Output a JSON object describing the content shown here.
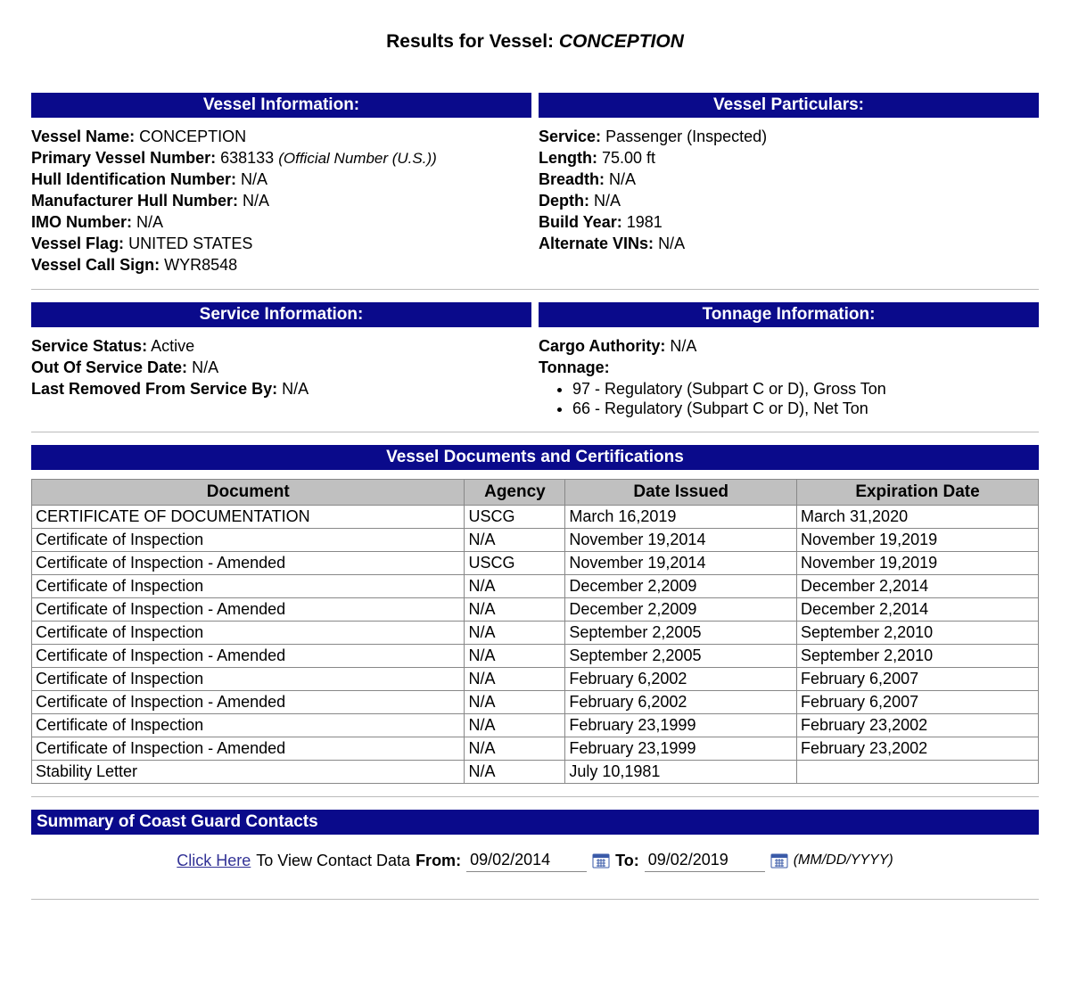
{
  "title_prefix": "Results for Vessel: ",
  "vessel_name": "CONCEPTION",
  "colors": {
    "header_bg": "#0a0a8b",
    "header_fg": "#ffffff",
    "table_header_bg": "#c0c0c0",
    "border": "#888888",
    "link": "#323296"
  },
  "vessel_info": {
    "header": "Vessel Information:",
    "fields": {
      "name": {
        "label": "Vessel Name:",
        "value": "CONCEPTION"
      },
      "primary_number": {
        "label": "Primary Vessel Number:",
        "value": "638133",
        "note": "(Official Number (U.S.))"
      },
      "hull_id": {
        "label": "Hull Identification Number:",
        "value": "N/A"
      },
      "mfr_hull": {
        "label": "Manufacturer Hull Number:",
        "value": "N/A"
      },
      "imo": {
        "label": "IMO Number:",
        "value": "N/A"
      },
      "flag": {
        "label": "Vessel Flag:",
        "value": "UNITED STATES"
      },
      "call_sign": {
        "label": "Vessel Call Sign:",
        "value": "WYR8548"
      }
    }
  },
  "particulars": {
    "header": "Vessel Particulars:",
    "fields": {
      "service": {
        "label": "Service:",
        "value": "Passenger (Inspected)"
      },
      "length": {
        "label": "Length:",
        "value": "75.00 ft"
      },
      "breadth": {
        "label": "Breadth:",
        "value": "N/A"
      },
      "depth": {
        "label": "Depth:",
        "value": "N/A"
      },
      "build_year": {
        "label": "Build Year:",
        "value": "1981"
      },
      "alt_vins": {
        "label": "Alternate VINs:",
        "value": "N/A"
      }
    }
  },
  "service_info": {
    "header": "Service Information:",
    "fields": {
      "status": {
        "label": "Service Status:",
        "value": "Active"
      },
      "out_date": {
        "label": "Out Of Service Date:",
        "value": "N/A"
      },
      "removed_by": {
        "label": "Last Removed From Service By:",
        "value": "N/A"
      }
    }
  },
  "tonnage_info": {
    "header": "Tonnage Information:",
    "cargo_authority": {
      "label": "Cargo Authority:",
      "value": "N/A"
    },
    "tonnage_label": "Tonnage:",
    "tonnage_items": [
      "97 - Regulatory (Subpart C or D), Gross Ton",
      "66 - Regulatory (Subpart C or D), Net Ton"
    ]
  },
  "docs": {
    "header": "Vessel Documents and Certifications",
    "columns": [
      "Document",
      "Agency",
      "Date Issued",
      "Expiration Date"
    ],
    "rows": [
      [
        "CERTIFICATE OF DOCUMENTATION",
        "USCG",
        "March 16,2019",
        "March 31,2020"
      ],
      [
        "Certificate of Inspection",
        "N/A",
        "November 19,2014",
        "November 19,2019"
      ],
      [
        "Certificate of Inspection - Amended",
        "USCG",
        "November 19,2014",
        "November 19,2019"
      ],
      [
        "Certificate of Inspection",
        "N/A",
        "December 2,2009",
        "December 2,2014"
      ],
      [
        "Certificate of Inspection - Amended",
        "N/A",
        "December 2,2009",
        "December 2,2014"
      ],
      [
        "Certificate of Inspection",
        "N/A",
        "September 2,2005",
        "September 2,2010"
      ],
      [
        "Certificate of Inspection - Amended",
        "N/A",
        "September 2,2005",
        "September 2,2010"
      ],
      [
        "Certificate of Inspection",
        "N/A",
        "February 6,2002",
        "February 6,2007"
      ],
      [
        "Certificate of Inspection - Amended",
        "N/A",
        "February 6,2002",
        "February 6,2007"
      ],
      [
        "Certificate of Inspection",
        "N/A",
        "February 23,1999",
        "February 23,2002"
      ],
      [
        "Certificate of Inspection - Amended",
        "N/A",
        "February 23,1999",
        "February 23,2002"
      ],
      [
        "Stability Letter",
        "N/A",
        "July 10,1981",
        ""
      ]
    ]
  },
  "contacts": {
    "header": "Summary of Coast Guard Contacts",
    "click_here": "Click Here",
    "view_text": "To View Contact Data",
    "from_label": "From:",
    "to_label": "To:",
    "from_value": "09/02/2014",
    "to_value": "09/02/2019",
    "format_note": "(MM/DD/YYYY)"
  }
}
